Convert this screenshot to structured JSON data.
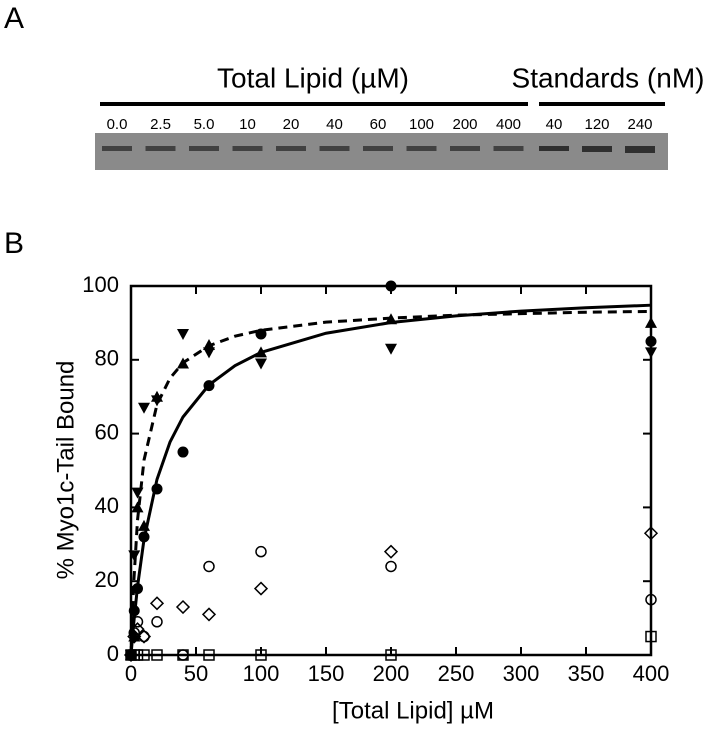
{
  "panel_a": {
    "label": "A",
    "groups": [
      "Total Lipid (µM)",
      "Standards (nM)"
    ],
    "lipid_lanes": [
      "0.0",
      "2.5",
      "5.0",
      "10",
      "20",
      "40",
      "60",
      "100",
      "200",
      "400"
    ],
    "standard_lanes": [
      "40",
      "120",
      "240"
    ]
  },
  "panel_b": {
    "label": "B"
  },
  "chart_data": {
    "type": "scatter",
    "y_label": "% Myo1c-Tail Bound",
    "x_label": "[Total Lipid] µM",
    "xlim": [
      0,
      400
    ],
    "ylim": [
      0,
      100
    ],
    "xticks": [
      0,
      50,
      100,
      150,
      200,
      250,
      300,
      350,
      400
    ],
    "yticks": [
      0,
      20,
      40,
      60,
      80,
      100
    ],
    "series": [
      {
        "marker": "circle-filled",
        "color": "#000000",
        "x": [
          0,
          2.5,
          5,
          10,
          20,
          40,
          60,
          100,
          200,
          400
        ],
        "values": [
          0,
          12,
          18,
          32,
          45,
          55,
          73,
          87,
          100,
          85
        ]
      },
      {
        "marker": "triangle-up-filled",
        "color": "#000000",
        "x": [
          0,
          2.5,
          5,
          10,
          20,
          40,
          60,
          100,
          200,
          400
        ],
        "values": [
          0,
          5,
          40,
          35,
          70,
          79,
          84,
          82,
          91,
          90
        ]
      },
      {
        "marker": "triangle-down-filled",
        "color": "#000000",
        "x": [
          0,
          2.5,
          5,
          10,
          20,
          40,
          60,
          100,
          200,
          400
        ],
        "values": [
          0,
          27,
          44,
          67,
          69,
          87,
          82,
          79,
          83,
          82
        ]
      },
      {
        "marker": "circle-open",
        "color": "#000000",
        "x": [
          0,
          2.5,
          5,
          10,
          20,
          40,
          60,
          100,
          200,
          400
        ],
        "values": [
          0,
          6,
          9,
          5,
          9,
          0,
          24,
          28,
          24,
          15
        ]
      },
      {
        "marker": "diamond-open",
        "color": "#000000",
        "x": [
          0,
          2.5,
          5,
          10,
          20,
          40,
          60,
          100,
          200,
          400
        ],
        "values": [
          0,
          5,
          7,
          5,
          14,
          13,
          11,
          18,
          28,
          33
        ]
      },
      {
        "marker": "square-open",
        "color": "#000000",
        "x": [
          0,
          2.5,
          5,
          10,
          20,
          40,
          60,
          100,
          200,
          400
        ],
        "values": [
          0,
          0,
          0,
          0,
          0,
          0,
          0,
          0,
          0,
          5
        ]
      },
      {
        "marker": "line-solid",
        "color": "#000000",
        "x": [
          0,
          2,
          5,
          10,
          20,
          30,
          40,
          60,
          80,
          100,
          150,
          200,
          250,
          300,
          350,
          400
        ],
        "values": [
          0,
          8.3,
          18.5,
          31.3,
          47.6,
          57.7,
          64.5,
          73.2,
          78.4,
          82.0,
          87.2,
          90.1,
          91.9,
          93.2,
          94.1,
          94.8
        ]
      },
      {
        "marker": "line-dashed",
        "color": "#000000",
        "x": [
          0,
          2,
          5,
          10,
          20,
          30,
          40,
          60,
          80,
          100,
          150,
          200,
          250,
          300,
          350,
          400
        ],
        "values": [
          0,
          19,
          36.5,
          52.8,
          67.9,
          75,
          79.2,
          83.8,
          86.4,
          88,
          90.2,
          91.3,
          92.1,
          92.5,
          92.9,
          93.1
        ]
      }
    ]
  }
}
